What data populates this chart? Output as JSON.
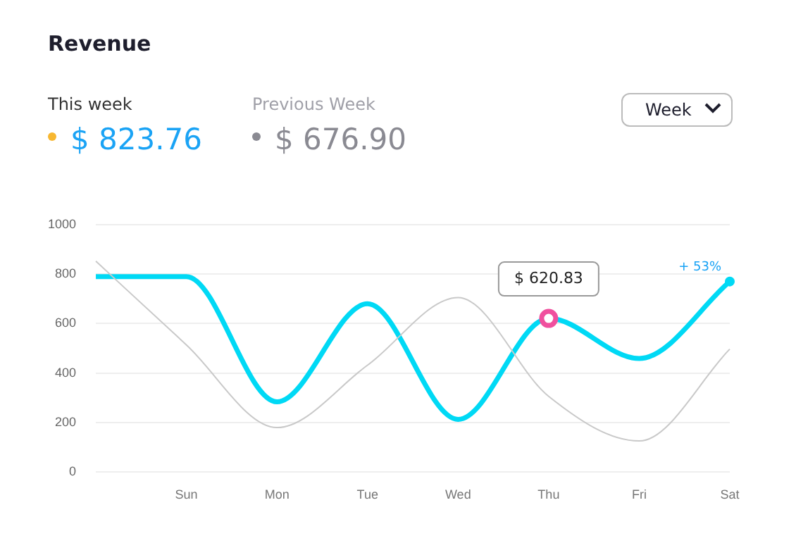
{
  "chart_data": {
    "type": "line",
    "title": "Revenue",
    "categories": [
      null,
      "Sun",
      "Mon",
      "Tue",
      "Wed",
      "Thu",
      "Fri",
      "Sat"
    ],
    "series": [
      {
        "color": "#c9c9c9",
        "values": [
          852,
          514,
          180,
          432,
          705,
          306,
          126,
          497
        ]
      },
      {
        "color": "#00d9f5",
        "values": [
          790,
          790,
          284,
          680,
          213,
          620.83,
          459,
          770
        ],
        "value_labels": [
          null,
          null,
          null,
          null,
          null,
          "$ 620.83",
          null,
          null
        ]
      }
    ],
    "ylim": [
      0,
      1000
    ],
    "yticks": [
      0,
      200,
      400,
      600,
      800,
      1000
    ],
    "grid": "y",
    "legend": false,
    "marker": "none",
    "line_style": "solid",
    "annotations": [
      "This week",
      "$ 823.76",
      "Previous Week",
      "$ 676.90",
      "Week",
      {
        "text": "+ 53%",
        "x": "Sat",
        "y": 770
      }
    ]
  }
}
